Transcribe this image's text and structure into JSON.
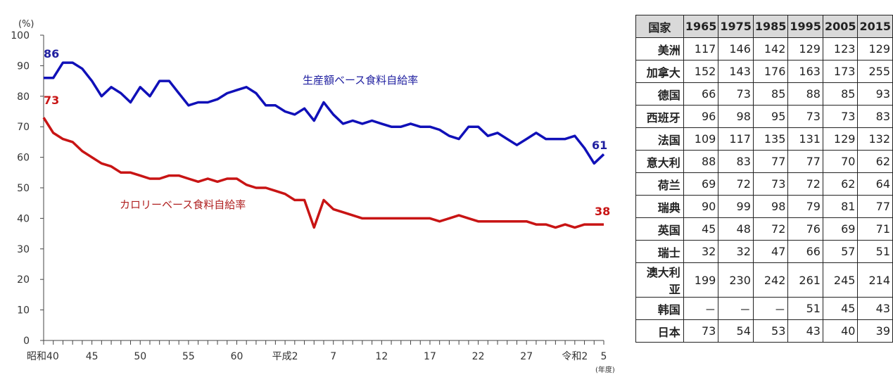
{
  "chart_data": {
    "type": "line",
    "y_unit": "(%)",
    "x_unit": "(年度)",
    "ylim": [
      0,
      100
    ],
    "yticks": [
      0,
      10,
      20,
      30,
      40,
      50,
      60,
      70,
      80,
      90,
      100
    ],
    "xtick_labels": [
      "昭和40",
      "45",
      "50",
      "55",
      "60",
      "平成2",
      "7",
      "12",
      "17",
      "22",
      "27",
      "令和2",
      "5"
    ],
    "x": [
      1965,
      1966,
      1967,
      1968,
      1969,
      1970,
      1971,
      1972,
      1973,
      1974,
      1975,
      1976,
      1977,
      1978,
      1979,
      1980,
      1981,
      1982,
      1983,
      1984,
      1985,
      1986,
      1987,
      1988,
      1989,
      1990,
      1991,
      1992,
      1993,
      1994,
      1995,
      1996,
      1997,
      1998,
      1999,
      2000,
      2001,
      2002,
      2003,
      2004,
      2005,
      2006,
      2007,
      2008,
      2009,
      2010,
      2011,
      2012,
      2013,
      2014,
      2015,
      2016,
      2017,
      2018,
      2019,
      2020,
      2021,
      2022,
      2023
    ],
    "series": [
      {
        "name": "生産額ベース食料自給率",
        "color": "#1010b8",
        "values": [
          86,
          86,
          91,
          91,
          89,
          85,
          80,
          83,
          81,
          78,
          83,
          80,
          85,
          85,
          81,
          77,
          78,
          78,
          79,
          81,
          82,
          83,
          81,
          77,
          77,
          75,
          74,
          76,
          72,
          78,
          74,
          71,
          72,
          71,
          72,
          71,
          70,
          70,
          71,
          70,
          70,
          69,
          67,
          66,
          70,
          70,
          67,
          68,
          66,
          64,
          66,
          68,
          66,
          66,
          66,
          67,
          63,
          58,
          61
        ]
      },
      {
        "name": "カロリーベース食料自給率",
        "color": "#c81414",
        "values": [
          73,
          68,
          66,
          65,
          62,
          60,
          58,
          57,
          55,
          55,
          54,
          53,
          53,
          54,
          54,
          53,
          52,
          53,
          52,
          53,
          53,
          51,
          50,
          50,
          49,
          48,
          46,
          46,
          37,
          46,
          43,
          42,
          41,
          40,
          40,
          40,
          40,
          40,
          40,
          40,
          40,
          39,
          40,
          41,
          40,
          39,
          39,
          39,
          39,
          39,
          39,
          38,
          38,
          37,
          38,
          37,
          38,
          38,
          38
        ]
      }
    ],
    "annotations": [
      "86",
      "73",
      "61",
      "38"
    ]
  },
  "table": {
    "headers": [
      "国家",
      "1965",
      "1975",
      "1985",
      "1995",
      "2005",
      "2015"
    ],
    "rows": [
      [
        "美洲",
        "117",
        "146",
        "142",
        "129",
        "123",
        "129"
      ],
      [
        "加拿大",
        "152",
        "143",
        "176",
        "163",
        "173",
        "255"
      ],
      [
        "德国",
        "66",
        "73",
        "85",
        "88",
        "85",
        "93"
      ],
      [
        "西班牙",
        "96",
        "98",
        "95",
        "73",
        "73",
        "83"
      ],
      [
        "法国",
        "109",
        "117",
        "135",
        "131",
        "129",
        "132"
      ],
      [
        "意大利",
        "88",
        "83",
        "77",
        "77",
        "70",
        "62"
      ],
      [
        "荷兰",
        "69",
        "72",
        "73",
        "72",
        "62",
        "64"
      ],
      [
        "瑞典",
        "90",
        "99",
        "98",
        "79",
        "81",
        "77"
      ],
      [
        "英国",
        "45",
        "48",
        "72",
        "76",
        "69",
        "71"
      ],
      [
        "瑞士",
        "32",
        "32",
        "47",
        "66",
        "57",
        "51"
      ],
      [
        "澳大利亚",
        "199",
        "230",
        "242",
        "261",
        "245",
        "214"
      ],
      [
        "韩国",
        "－",
        "－",
        "－",
        "51",
        "45",
        "43"
      ],
      [
        "日本",
        "73",
        "54",
        "53",
        "43",
        "40",
        "39"
      ]
    ]
  }
}
